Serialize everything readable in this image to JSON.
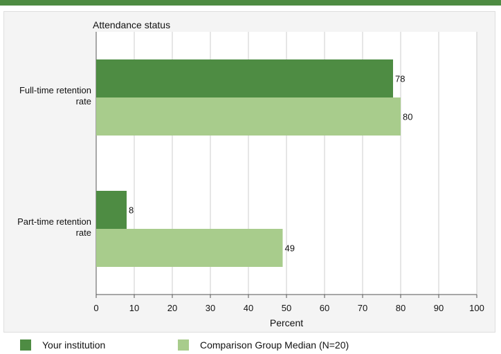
{
  "chart_data": {
    "type": "bar",
    "orientation": "horizontal",
    "title": "Attendance status",
    "categories": [
      "Full-time retention rate",
      "Part-time retention rate"
    ],
    "category_lines": [
      [
        "Full-time retention",
        "rate"
      ],
      [
        "Part-time retention",
        "rate"
      ]
    ],
    "series": [
      {
        "name": "Your institution",
        "values": [
          78,
          8
        ],
        "color": "#4e8c43"
      },
      {
        "name": "Comparison Group Median (N=20)",
        "values": [
          80,
          49
        ],
        "color": "#a8cc8c"
      }
    ],
    "xlabel": "Percent",
    "xlim": [
      0,
      100
    ],
    "xticks": [
      0,
      10,
      20,
      30,
      40,
      50,
      60,
      70,
      80,
      90,
      100
    ],
    "grid": true,
    "legend_position": "bottom"
  }
}
